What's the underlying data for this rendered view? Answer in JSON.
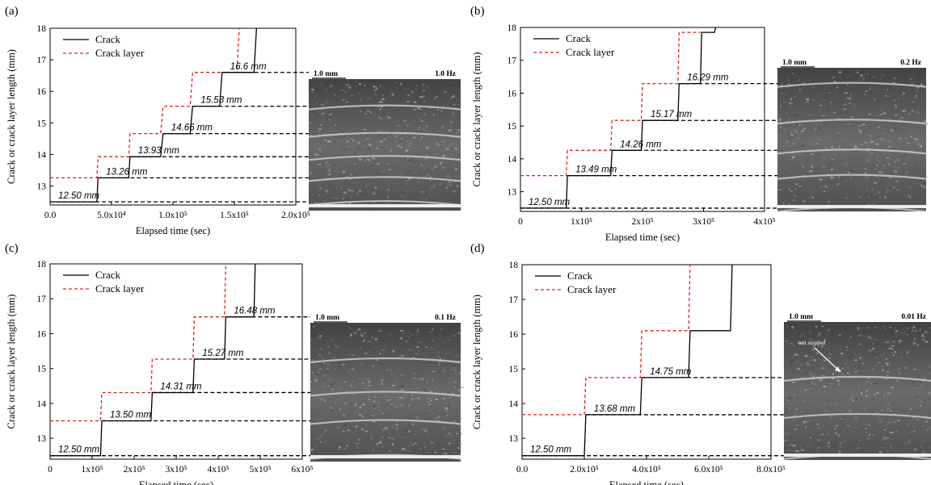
{
  "chart_data": [
    {
      "panel": "(a)",
      "type": "line",
      "xlabel": "Elapsed time (sec)",
      "ylabel": "Crack or crack layer length (mm)",
      "xlim": [
        0,
        200000
      ],
      "ylim": [
        12.4,
        18
      ],
      "xticks": [
        0,
        50000,
        100000,
        150000,
        200000
      ],
      "xtick_labels": [
        "0.0",
        "5.0x10⁴",
        "1.0x10⁵",
        "1.5x10⁵",
        "2.0x10⁵"
      ],
      "yticks": [
        13,
        14,
        15,
        16,
        17,
        18
      ],
      "legend": [
        "Crack",
        "Crack layer"
      ],
      "legend_position": "top-left",
      "photo": {
        "scale": "1.0 mm",
        "freq": "1.0 Hz",
        "note": ""
      },
      "series": [
        {
          "name": "Crack",
          "color": "#000000",
          "x": [
            0,
            38000,
            39000,
            64000,
            65000,
            90000,
            92000,
            114000,
            116000,
            138000,
            140000,
            166000,
            168000,
            168000
          ],
          "y": [
            12.5,
            12.5,
            13.26,
            13.26,
            13.93,
            13.93,
            14.66,
            14.66,
            15.53,
            15.53,
            16.6,
            16.6,
            18,
            18
          ]
        },
        {
          "name": "Crack layer",
          "color": "#e02020",
          "x": [
            0,
            0,
            38000,
            39000,
            64000,
            65000,
            90000,
            92000,
            114000,
            116000,
            138000,
            140000,
            152000,
            154000
          ],
          "y": [
            13.26,
            13.26,
            13.26,
            13.93,
            13.93,
            14.66,
            14.66,
            15.53,
            15.53,
            16.6,
            16.6,
            16.6,
            16.6,
            18
          ]
        }
      ],
      "annotations": [
        {
          "text": "12.50 mm",
          "y": 12.5
        },
        {
          "text": "13.26 mm",
          "y": 13.26
        },
        {
          "text": "13.93 mm",
          "y": 13.93
        },
        {
          "text": "14.66 mm",
          "y": 14.66
        },
        {
          "text": "15.53 mm",
          "y": 15.53
        },
        {
          "text": "16.6 mm",
          "y": 16.6
        }
      ]
    },
    {
      "panel": "(b)",
      "type": "line",
      "xlabel": "Elapsed time (sec)",
      "ylabel": "Crack or crack layer length (mm)",
      "xlim": [
        0,
        400000
      ],
      "ylim": [
        12.4,
        18
      ],
      "xticks": [
        0,
        100000,
        200000,
        300000,
        400000
      ],
      "xtick_labels": [
        "0",
        "1x10⁵",
        "2x10⁵",
        "3x10⁵",
        "4x10⁵"
      ],
      "yticks": [
        13,
        14,
        15,
        16,
        17,
        18
      ],
      "legend": [
        "Crack",
        "Crack layer"
      ],
      "legend_position": "top-left",
      "photo": {
        "scale": "1.0 mm",
        "freq": "0.2 Hz",
        "note": ""
      },
      "series": [
        {
          "name": "Crack",
          "color": "#000000",
          "x": [
            0,
            75000,
            77000,
            148000,
            150000,
            198000,
            200000,
            258000,
            260000,
            295000,
            297000,
            318000,
            320000
          ],
          "y": [
            12.5,
            12.5,
            13.49,
            13.49,
            14.26,
            14.26,
            15.17,
            15.17,
            16.29,
            16.29,
            17.85,
            17.85,
            18
          ]
        },
        {
          "name": "Crack layer",
          "color": "#e02020",
          "x": [
            0,
            75000,
            77000,
            148000,
            150000,
            198000,
            200000,
            258000,
            260000,
            295000
          ],
          "y": [
            13.49,
            13.49,
            14.26,
            14.26,
            15.17,
            15.17,
            16.29,
            16.29,
            17.85,
            17.85
          ]
        }
      ],
      "annotations": [
        {
          "text": "12.50 mm",
          "y": 12.5
        },
        {
          "text": "13.49 mm",
          "y": 13.49
        },
        {
          "text": "14.26 mm",
          "y": 14.26
        },
        {
          "text": "15.17 mm",
          "y": 15.17
        },
        {
          "text": "16.29 mm",
          "y": 16.29
        }
      ]
    },
    {
      "panel": "(c)",
      "type": "line",
      "xlabel": "Elapsed time (sec)",
      "ylabel": "Crack or crack layer length (mm)",
      "xlim": [
        0,
        600000
      ],
      "ylim": [
        12.4,
        18
      ],
      "xticks": [
        0,
        100000,
        200000,
        300000,
        400000,
        500000,
        600000
      ],
      "xtick_labels": [
        "0",
        "1x10⁵",
        "2x10⁵",
        "3x10⁵",
        "4x10⁵",
        "5x10⁵",
        "6x10⁵"
      ],
      "yticks": [
        13,
        14,
        15,
        16,
        17,
        18
      ],
      "legend": [
        "Crack",
        "Crack layer"
      ],
      "legend_position": "top-left",
      "photo": {
        "scale": "1.0 mm",
        "freq": "0.1 Hz",
        "note": ""
      },
      "series": [
        {
          "name": "Crack",
          "color": "#000000",
          "x": [
            0,
            120000,
            123000,
            240000,
            243000,
            340000,
            343000,
            415000,
            418000,
            485000,
            488000
          ],
          "y": [
            12.5,
            12.5,
            13.5,
            13.5,
            14.31,
            14.31,
            15.27,
            15.27,
            16.48,
            16.48,
            18
          ]
        },
        {
          "name": "Crack layer",
          "color": "#e02020",
          "x": [
            0,
            120000,
            123000,
            240000,
            243000,
            340000,
            343000,
            415000,
            418000
          ],
          "y": [
            13.5,
            13.5,
            14.31,
            14.31,
            15.27,
            15.27,
            16.48,
            16.48,
            18
          ]
        }
      ],
      "annotations": [
        {
          "text": "12.50 mm",
          "y": 12.5
        },
        {
          "text": "13.50 mm",
          "y": 13.5
        },
        {
          "text": "14.31 mm",
          "y": 14.31
        },
        {
          "text": "15.27 mm",
          "y": 15.27
        },
        {
          "text": "16.48 mm",
          "y": 16.48
        }
      ]
    },
    {
      "panel": "(d)",
      "type": "line",
      "xlabel": "Elapsed time (sec)",
      "ylabel": "Crack or crack layer length (mm)",
      "xlim": [
        0,
        800000
      ],
      "ylim": [
        12.4,
        18
      ],
      "xticks": [
        0,
        200000,
        400000,
        600000,
        800000
      ],
      "xtick_labels": [
        "0.0",
        "2.0x10⁵",
        "4.0x10⁵",
        "6.0x10⁵",
        "8.0x10⁵"
      ],
      "yticks": [
        13,
        14,
        15,
        16,
        17,
        18
      ],
      "legend": [
        "Crack",
        "Crack layer"
      ],
      "legend_position": "top-left",
      "photo": {
        "scale": "1.0 mm",
        "freq": "0.01 Hz",
        "note": "test stopped"
      },
      "series": [
        {
          "name": "Crack",
          "color": "#000000",
          "x": [
            0,
            200000,
            205000,
            380000,
            385000,
            535000,
            540000,
            670000,
            675000
          ],
          "y": [
            12.5,
            12.5,
            13.68,
            13.68,
            14.75,
            14.75,
            16.1,
            16.1,
            18
          ]
        },
        {
          "name": "Crack layer",
          "color": "#e02020",
          "x": [
            0,
            200000,
            205000,
            380000,
            385000,
            535000,
            540000
          ],
          "y": [
            13.68,
            13.68,
            14.75,
            14.75,
            16.1,
            16.1,
            18
          ]
        }
      ],
      "annotations": [
        {
          "text": "12.50 mm",
          "y": 12.5
        },
        {
          "text": "13.68 mm",
          "y": 13.68
        },
        {
          "text": "14.75 mm",
          "y": 14.75
        }
      ]
    }
  ]
}
